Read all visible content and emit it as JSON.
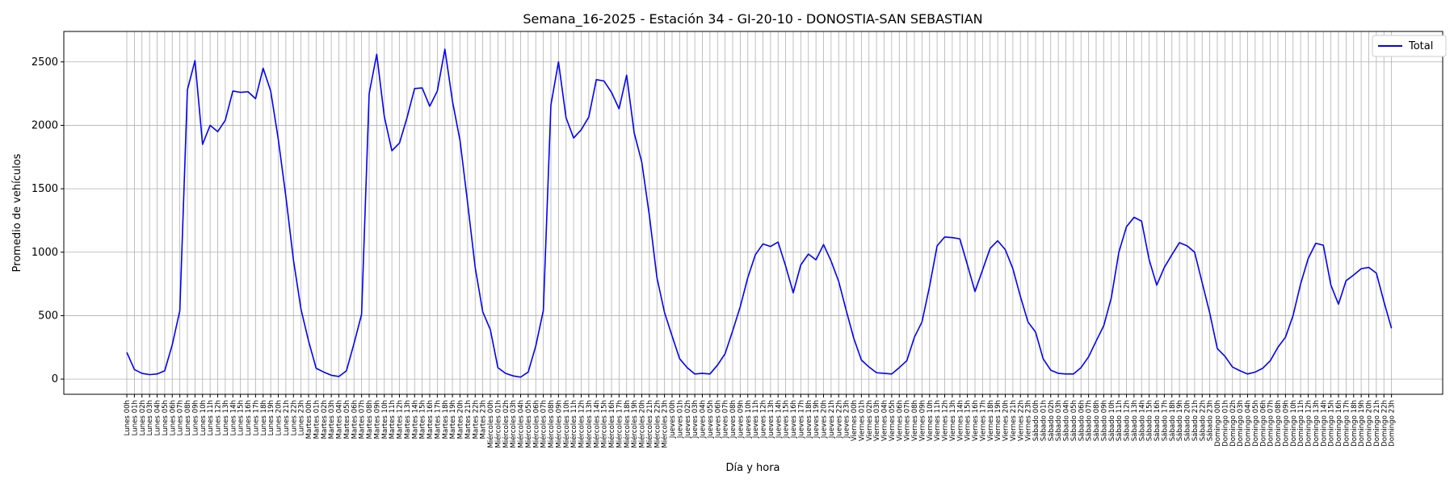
{
  "chart_data": {
    "type": "line",
    "title": "Semana_16-2025 - Estación 34 - GI-20-10  - DONOSTIA-SAN SEBASTIAN",
    "xlabel": "Día y hora",
    "ylabel": "Promedio de vehículos",
    "ylim": [
      -120,
      2740
    ],
    "yticks": [
      0,
      500,
      1000,
      1500,
      2000,
      2500
    ],
    "grid": true,
    "legend_position": "top-right",
    "days": [
      "Lunes",
      "Martes",
      "Miércoles",
      "Jueves",
      "Viernes",
      "Sábado",
      "Domingo"
    ],
    "series": [
      {
        "name": "Total",
        "color": "#0000ff",
        "values": [
          210,
          75,
          45,
          35,
          40,
          65,
          270,
          540,
          2280,
          2510,
          1850,
          2000,
          1950,
          2040,
          2270,
          2260,
          2265,
          2210,
          2450,
          2270,
          1890,
          1440,
          940,
          550,
          300,
          85,
          55,
          30,
          20,
          65,
          280,
          510,
          2250,
          2560,
          2070,
          1800,
          1860,
          2060,
          2290,
          2295,
          2150,
          2270,
          2600,
          2190,
          1880,
          1390,
          880,
          530,
          390,
          90,
          45,
          25,
          15,
          55,
          260,
          540,
          2160,
          2500,
          2060,
          1900,
          1965,
          2065,
          2360,
          2350,
          2260,
          2130,
          2395,
          1940,
          1710,
          1290,
          800,
          525,
          340,
          160,
          90,
          40,
          45,
          40,
          110,
          200,
          380,
          570,
          800,
          980,
          1065,
          1045,
          1080,
          890,
          680,
          900,
          985,
          940,
          1060,
          930,
          770,
          540,
          320,
          150,
          95,
          50,
          45,
          40,
          90,
          145,
          330,
          450,
          730,
          1050,
          1120,
          1115,
          1105,
          900,
          690,
          860,
          1030,
          1090,
          1020,
          870,
          650,
          450,
          370,
          160,
          70,
          45,
          40,
          40,
          90,
          175,
          300,
          420,
          640,
          1000,
          1200,
          1275,
          1245,
          940,
          740,
          880,
          980,
          1075,
          1050,
          1000,
          760,
          520,
          240,
          180,
          95,
          65,
          40,
          55,
          85,
          145,
          250,
          330,
          500,
          750,
          950,
          1070,
          1055,
          740,
          590,
          775,
          820,
          870,
          880,
          835,
          610,
          400
        ]
      }
    ]
  }
}
